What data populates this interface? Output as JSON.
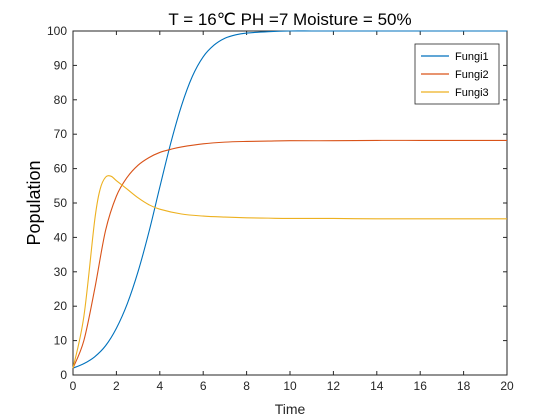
{
  "chart_data": {
    "type": "line",
    "title": "T = 16℃ PH =7 Moisture = 50%",
    "xlabel": "Time",
    "ylabel": "Population",
    "xlim": [
      0,
      20
    ],
    "ylim": [
      0,
      100
    ],
    "xticks": [
      0,
      2,
      4,
      6,
      8,
      10,
      12,
      14,
      16,
      18,
      20
    ],
    "yticks": [
      0,
      10,
      20,
      30,
      40,
      50,
      60,
      70,
      80,
      90,
      100
    ],
    "grid": false,
    "legend_position": "top-right",
    "series": [
      {
        "name": "Fungi1",
        "color": "#0072BD",
        "x": [
          0,
          0.5,
          1,
          1.5,
          2,
          2.5,
          3,
          3.5,
          4,
          4.5,
          5,
          5.5,
          6,
          6.5,
          7,
          7.5,
          8,
          9,
          10,
          11,
          12,
          14,
          16,
          18,
          20
        ],
        "y": [
          2,
          3.3,
          5.3,
          8.5,
          13.6,
          20.7,
          30.1,
          41.6,
          54.6,
          67.3,
          78.3,
          86.8,
          92.5,
          95.9,
          97.9,
          98.9,
          99.4,
          99.8,
          100,
          100,
          100,
          100,
          100,
          100,
          100
        ]
      },
      {
        "name": "Fungi2",
        "color": "#D95319",
        "x": [
          0,
          0.5,
          1,
          1.5,
          2,
          2.5,
          3,
          3.5,
          4,
          4.5,
          5,
          6,
          7,
          8,
          9,
          10,
          12,
          14,
          16,
          18,
          20
        ],
        "y": [
          2,
          10,
          25,
          42,
          52,
          57.5,
          61,
          63.2,
          64.7,
          65.6,
          66.3,
          67.2,
          67.7,
          67.9,
          68,
          68.1,
          68.1,
          68.2,
          68.2,
          68.2,
          68.2
        ]
      },
      {
        "name": "Fungi3",
        "color": "#EDB120",
        "x": [
          0,
          0.5,
          1,
          1.25,
          1.5,
          1.75,
          2,
          2.5,
          3,
          3.5,
          4,
          5,
          6,
          7,
          8,
          9,
          10,
          12,
          14,
          16,
          18,
          20
        ],
        "y": [
          2,
          17,
          45,
          54,
          57.5,
          57.8,
          56.5,
          54,
          51.5,
          49.5,
          48.2,
          46.8,
          46.2,
          45.9,
          45.7,
          45.6,
          45.5,
          45.5,
          45.4,
          45.4,
          45.4,
          45.4
        ]
      }
    ]
  }
}
